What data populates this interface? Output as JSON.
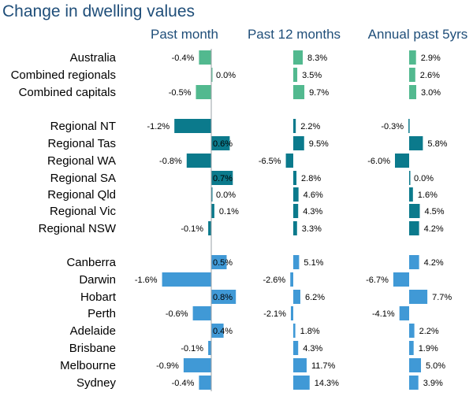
{
  "chart_data": {
    "type": "bar",
    "title": "Change in dwelling values",
    "orientation": "horizontal",
    "categories": [
      "Australia",
      "Combined regionals",
      "Combined capitals",
      "Regional NT",
      "Regional Tas",
      "Regional WA",
      "Regional SA",
      "Regional Qld",
      "Regional Vic",
      "Regional NSW",
      "Canberra",
      "Darwin",
      "Hobart",
      "Perth",
      "Adelaide",
      "Brisbane",
      "Melbourne",
      "Sydney"
    ],
    "groups": [
      {
        "categories": [
          "Australia",
          "Combined regionals",
          "Combined capitals"
        ],
        "color": "#52b98f"
      },
      {
        "categories": [
          "Regional NT",
          "Regional Tas",
          "Regional WA",
          "Regional SA",
          "Regional Qld",
          "Regional Vic",
          "Regional NSW"
        ],
        "color": "#0b7a8c"
      },
      {
        "categories": [
          "Canberra",
          "Darwin",
          "Hobart",
          "Perth",
          "Adelaide",
          "Brisbane",
          "Melbourne",
          "Sydney"
        ],
        "color": "#4099d6"
      }
    ],
    "series": [
      {
        "name": "Past month",
        "values": [
          -0.4,
          0.0,
          -0.5,
          -1.2,
          0.6,
          -0.8,
          0.7,
          0.0,
          0.1,
          -0.1,
          0.5,
          -1.6,
          0.8,
          -0.6,
          0.4,
          -0.1,
          -0.9,
          -0.4
        ],
        "labels": [
          "-0.4%",
          "0.0%",
          "-0.5%",
          "-1.2%",
          "0.6%",
          "-0.8%",
          "0.7%",
          "0.0%",
          "0.1%",
          "-0.1%",
          "0.5%",
          "-1.6%",
          "0.8%",
          "-0.6%",
          "0.4%",
          "-0.1%",
          "-0.9%",
          "-0.4%"
        ]
      },
      {
        "name": "Past 12 months",
        "values": [
          8.3,
          3.5,
          9.7,
          2.2,
          9.5,
          -6.5,
          2.8,
          4.6,
          4.3,
          3.3,
          5.1,
          -2.6,
          6.2,
          -2.1,
          1.8,
          4.3,
          11.7,
          14.3
        ],
        "labels": [
          "8.3%",
          "3.5%",
          "9.7%",
          "2.2%",
          "9.5%",
          "-6.5%",
          "2.8%",
          "4.6%",
          "4.3%",
          "3.3%",
          "5.1%",
          "-2.6%",
          "6.2%",
          "-2.1%",
          "1.8%",
          "4.3%",
          "11.7%",
          "14.3%"
        ]
      },
      {
        "name": "Annual past 5yrs",
        "values": [
          2.9,
          2.6,
          3.0,
          -0.3,
          5.8,
          -6.0,
          0.0,
          1.6,
          4.5,
          4.2,
          4.2,
          -6.7,
          7.7,
          -4.1,
          2.2,
          1.9,
          5.0,
          3.9
        ],
        "labels": [
          "2.9%",
          "2.6%",
          "3.0%",
          "-0.3%",
          "5.8%",
          "-6.0%",
          "0.0%",
          "1.6%",
          "4.5%",
          "4.2%",
          "4.2%",
          "-6.7%",
          "7.7%",
          "-4.1%",
          "2.2%",
          "1.9%",
          "5.0%",
          "3.9%"
        ]
      }
    ],
    "xlabel": "",
    "ylabel": "",
    "grid": false,
    "legend": "none"
  }
}
